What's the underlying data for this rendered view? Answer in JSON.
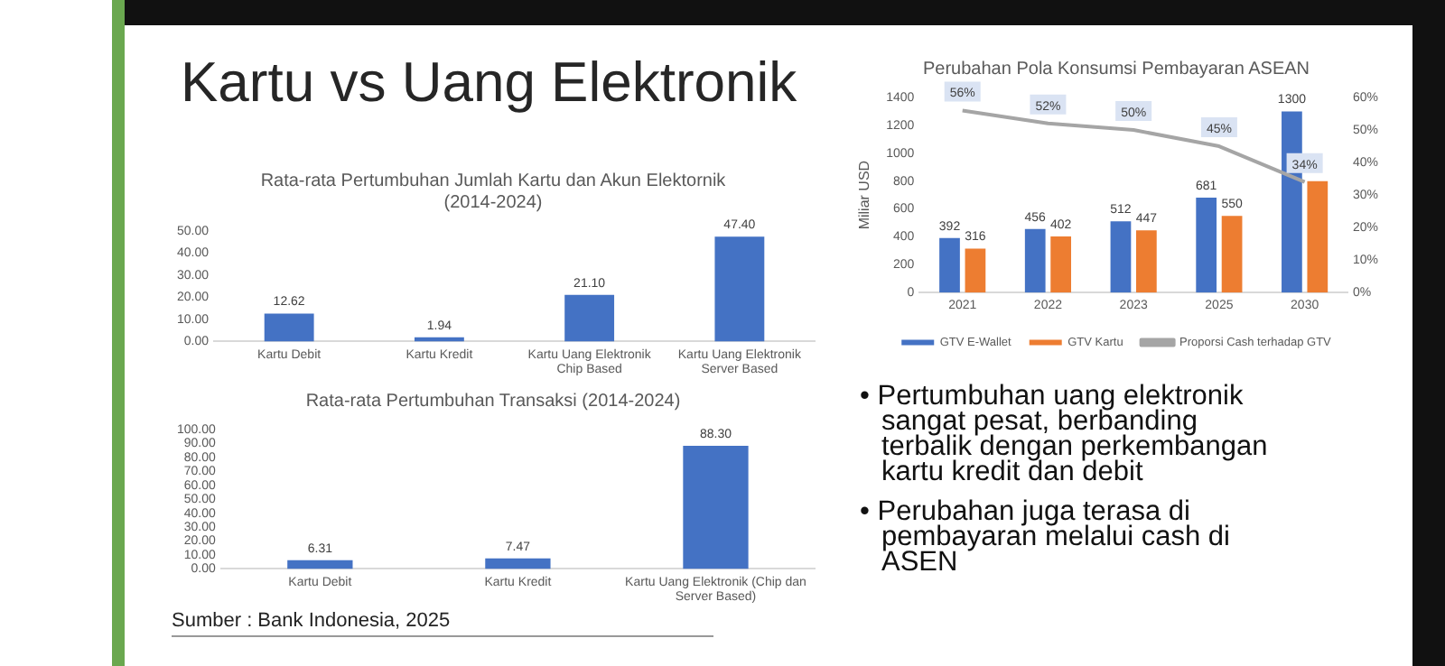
{
  "chart_data": [
    {
      "type": "bar",
      "title": "Rata-rata Pertumbuhan Jumlah Kartu dan Akun Elektornik (2014-2024)",
      "categories": [
        "Kartu Debit",
        "Kartu Kredit",
        "Kartu Uang Elektronik Chip Based",
        "Kartu Uang Elektronik Server Based"
      ],
      "values": [
        12.62,
        1.94,
        21.1,
        47.4
      ],
      "value_labels": [
        "12.62",
        "1.94",
        "21.10",
        "47.40"
      ],
      "color": "#4472c4",
      "ylim": [
        0,
        50
      ],
      "yticks": [
        {
          "value": 0,
          "label": "0.00"
        },
        {
          "value": 10,
          "label": "10.00"
        },
        {
          "value": 20,
          "label": "20.00"
        },
        {
          "value": 30,
          "label": "30.00"
        },
        {
          "value": 40,
          "label": "40.00"
        },
        {
          "value": 50,
          "label": "50.00"
        }
      ],
      "grid": false,
      "legend": false
    },
    {
      "type": "bar",
      "title": "Rata-rata Pertumbuhan Transaksi (2014-2024)",
      "categories": [
        "Kartu Debit",
        "Kartu Kredit",
        "Kartu Uang Elektronik (Chip dan Server Based)"
      ],
      "values": [
        6.31,
        7.47,
        88.3
      ],
      "value_labels": [
        "6.31",
        "7.47",
        "88.30"
      ],
      "color": "#4472c4",
      "ylim": [
        0,
        100
      ],
      "yticks": [
        {
          "value": 0,
          "label": "0.00"
        },
        {
          "value": 10,
          "label": "10.00"
        },
        {
          "value": 20,
          "label": "20.00"
        },
        {
          "value": 30,
          "label": "30.00"
        },
        {
          "value": 40,
          "label": "40.00"
        },
        {
          "value": 50,
          "label": "50.00"
        },
        {
          "value": 60,
          "label": "60.00"
        },
        {
          "value": 70,
          "label": "70.00"
        },
        {
          "value": 80,
          "label": "80.00"
        },
        {
          "value": 90,
          "label": "90.00"
        },
        {
          "value": 100,
          "label": "100.00"
        }
      ],
      "grid": false,
      "legend": false,
      "annotations": [
        "Sumber : Bank Indonesia, 2025"
      ]
    },
    {
      "type": "bar",
      "title": "Perubahan Pola Konsumsi Pembayaran ASEAN",
      "ylabel": "Miliar USD",
      "categories": [
        "2021",
        "2022",
        "2023",
        "2025",
        "2030"
      ],
      "series": [
        {
          "name": "GTV E-Wallet",
          "color": "#4472c4",
          "values": [
            392,
            456,
            512,
            681,
            1300
          ],
          "value_labels": [
            "392",
            "456",
            "512",
            "681",
            "1300"
          ]
        },
        {
          "name": "GTV Kartu",
          "color": "#ed7d31",
          "values": [
            316,
            402,
            447,
            550,
            800
          ],
          "value_labels": [
            "316",
            "402",
            "447",
            "550",
            null
          ]
        },
        {
          "name": "Proporsi Cash terhadap GTV",
          "type": "line",
          "axis": "y2",
          "color": "#a5a5a5",
          "values": [
            56,
            52,
            50,
            45,
            34
          ],
          "value_labels": [
            "56%",
            "52%",
            "50%",
            "45%",
            "34%"
          ]
        }
      ],
      "ylim": [
        0,
        1400
      ],
      "yticks": [
        0,
        200,
        400,
        600,
        800,
        1000,
        1200,
        1400
      ],
      "y2lim": [
        0,
        60
      ],
      "y2ticks": [
        {
          "value": 0,
          "label": "0%"
        },
        {
          "value": 10,
          "label": "10%"
        },
        {
          "value": 20,
          "label": "20%"
        },
        {
          "value": 30,
          "label": "30%"
        },
        {
          "value": 40,
          "label": "40%"
        },
        {
          "value": 50,
          "label": "50%"
        },
        {
          "value": 60,
          "label": "60%"
        }
      ],
      "grid": false,
      "legend": "bottom",
      "marker": "none"
    },
    {
      "type": "other",
      "title": "Kartu vs Uang Elektronik",
      "annotations": [
        "• Pertumbuhan uang elektronik sangat pesat, berbanding terbalik dengan perkembangan kartu kredit dan debit",
        "• Perubahan juga terasa di pembayaran melalui cash di ASEN"
      ]
    }
  ]
}
